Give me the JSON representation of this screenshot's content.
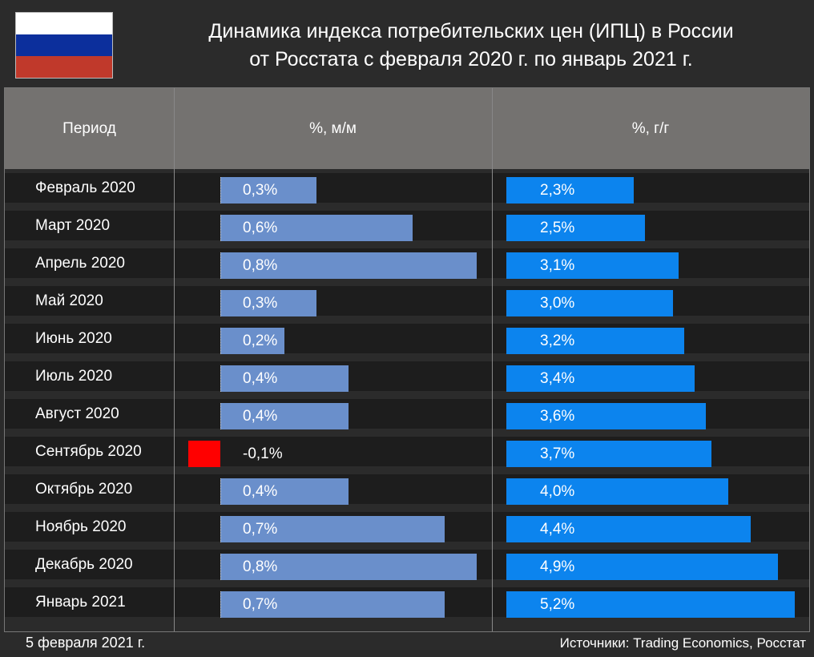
{
  "title_line1": "Динамика индекса потребительских цен (ИПЦ) в России",
  "title_line2": "от Росстата с февраля 2020 г. по январь 2021 г.",
  "flag_colors": [
    "#ffffff",
    "#0c2f9c",
    "#c0392b"
  ],
  "headers": {
    "period": "Период",
    "mm": "%, м/м",
    "yy": "%, г/г"
  },
  "colors": {
    "mm_bar": "#6a8fcb",
    "yy_bar": "#0c84ee",
    "negative_bar": "#ff0000"
  },
  "chart_data": {
    "type": "bar",
    "title": "Динамика индекса потребительских цен (ИПЦ) в России от Росстата с февраля 2020 г. по январь 2021 г.",
    "categories": [
      "Февраль 2020",
      "Март 2020",
      "Апрель 2020",
      "Май 2020",
      "Июнь 2020",
      "Июль 2020",
      "Август 2020",
      "Сентябрь 2020",
      "Октябрь 2020",
      "Ноябрь 2020",
      "Декабрь 2020",
      "Январь 2021"
    ],
    "series": [
      {
        "name": "%, м/м",
        "values": [
          0.3,
          0.6,
          0.8,
          0.3,
          0.2,
          0.4,
          0.4,
          -0.1,
          0.4,
          0.7,
          0.8,
          0.7
        ],
        "labels": [
          "0,3%",
          "0,6%",
          "0,8%",
          "0,3%",
          "0,2%",
          "0,4%",
          "0,4%",
          "-0,1%",
          "0,4%",
          "0,7%",
          "0,8%",
          "0,7%"
        ]
      },
      {
        "name": "%, г/г",
        "values": [
          2.3,
          2.5,
          3.1,
          3.0,
          3.2,
          3.4,
          3.6,
          3.7,
          4.0,
          4.4,
          4.9,
          5.2
        ],
        "labels": [
          "2,3%",
          "2,5%",
          "3,1%",
          "3,0%",
          "3,2%",
          "3,4%",
          "3,6%",
          "3,7%",
          "4,0%",
          "4,4%",
          "4,9%",
          "5,2%"
        ]
      }
    ],
    "yy_range": [
      0,
      5.2
    ]
  },
  "footer": {
    "date": "5 февраля 2021 г.",
    "sources": "Источники: Trading Economics, Росстат"
  }
}
